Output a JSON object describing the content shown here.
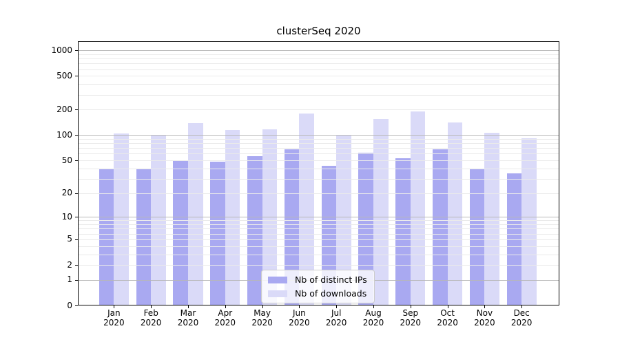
{
  "chart_data": {
    "type": "bar",
    "title": "clusterSeq 2020",
    "categories": [
      "Jan 2020",
      "Feb 2020",
      "Mar 2020",
      "Apr 2020",
      "May 2020",
      "Jun 2020",
      "Jul 2020",
      "Aug 2020",
      "Sep 2020",
      "Oct 2020",
      "Nov 2020",
      "Dec 2020"
    ],
    "x_tick_months": [
      "Jan",
      "Feb",
      "Mar",
      "Apr",
      "May",
      "Jun",
      "Jul",
      "Aug",
      "Sep",
      "Oct",
      "Nov",
      "Dec"
    ],
    "x_tick_year": "2020",
    "series": [
      {
        "name": "Nb of distinct IPs",
        "color": "#a9a9f1",
        "values": [
          40,
          39,
          50,
          48,
          56,
          68,
          43,
          62,
          53,
          68,
          40,
          35
        ]
      },
      {
        "name": "Nb of downloads",
        "color": "#dadaf8",
        "values": [
          104,
          100,
          138,
          114,
          118,
          180,
          101,
          154,
          190,
          142,
          106,
          92
        ]
      }
    ],
    "y_axis": {
      "scale": "log1p",
      "ticks": [
        0,
        1,
        2,
        5,
        10,
        20,
        50,
        100,
        200,
        500,
        1000
      ],
      "max_value": 1280
    },
    "grid": true,
    "legend_position": "bottom-center",
    "colors": {
      "background": "#ffffff",
      "axis": "#000000",
      "grid_major": "#b7b7b7",
      "grid_minor": "#eaeaea"
    }
  }
}
